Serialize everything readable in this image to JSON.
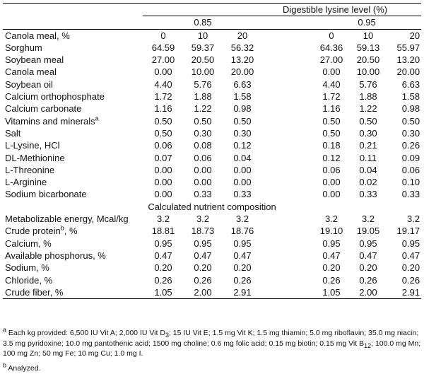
{
  "header": {
    "group_title": "Digestible lysine level (%)",
    "level1": "0.85",
    "level2": "0.95",
    "row_label": "Canola meal, %",
    "canola_levels": [
      "0",
      "10",
      "20",
      "0",
      "10",
      "20"
    ]
  },
  "ingredients": [
    {
      "name": "Sorghum",
      "values": [
        "64.59",
        "59.37",
        "56.32",
        "64.36",
        "59.13",
        "55.97"
      ]
    },
    {
      "name": "Soybean meal",
      "values": [
        "27.00",
        "20.50",
        "13.20",
        "27.00",
        "20.50",
        "13.20"
      ]
    },
    {
      "name": "Canola meal",
      "values": [
        "0.00",
        "10.00",
        "20.00",
        "0.00",
        "10.00",
        "20.00"
      ]
    },
    {
      "name": "Soybean oil",
      "values": [
        "4.40",
        "5.76",
        "6.63",
        "4.40",
        "5.76",
        "6.63"
      ]
    },
    {
      "name": "Calcium orthophosphate",
      "values": [
        "1.72",
        "1.88",
        "1.58",
        "1.72",
        "1.88",
        "1.58"
      ]
    },
    {
      "name": "Calcium carbonate",
      "values": [
        "1.16",
        "1.22",
        "0.98",
        "1.16",
        "1.22",
        "0.98"
      ]
    },
    {
      "name": "Vitamins and minerals",
      "sup": "a",
      "values": [
        "0.50",
        "0.50",
        "0.50",
        "0.50",
        "0.50",
        "0.50"
      ]
    },
    {
      "name": "Salt",
      "values": [
        "0.50",
        "0.30",
        "0.30",
        "0.50",
        "0.30",
        "0.30"
      ]
    },
    {
      "name": "L-Lysine, HCl",
      "values": [
        "0.06",
        "0.08",
        "0.12",
        "0.18",
        "0.21",
        "0.26"
      ]
    },
    {
      "name": "DL-Methionine",
      "values": [
        "0.07",
        "0.06",
        "0.04",
        "0.12",
        "0.11",
        "0.09"
      ]
    },
    {
      "name": "L-Threonine",
      "values": [
        "0.00",
        "0.00",
        "0.00",
        "0.06",
        "0.04",
        "0.06"
      ]
    },
    {
      "name": "L-Arginine",
      "values": [
        "0.00",
        "0.00",
        "0.00",
        "0.00",
        "0.02",
        "0.10"
      ]
    },
    {
      "name": "Sodium bicarbonate",
      "values": [
        "0.00",
        "0.33",
        "0.33",
        "0.00",
        "0.33",
        "0.33"
      ]
    }
  ],
  "composition_title": "Calculated nutrient composition",
  "composition": [
    {
      "name": "Metabolizable energy, Mcal/kg",
      "values": [
        "3.2",
        "3.2",
        "3.2",
        "3.2",
        "3.2",
        "3.2"
      ]
    },
    {
      "name": "Crude protein",
      "sup": "b",
      "suffix": ", %",
      "values": [
        "18.81",
        "18.73",
        "18.76",
        "19.10",
        "19.05",
        "19.17"
      ]
    },
    {
      "name": "Calcium, %",
      "values": [
        "0.95",
        "0.95",
        "0.95",
        "0.95",
        "0.95",
        "0.95"
      ]
    },
    {
      "name": "Available phosphorus, %",
      "values": [
        "0.47",
        "0.47",
        "0.47",
        "0.47",
        "0.47",
        "0.47"
      ]
    },
    {
      "name": "Sodium, %",
      "values": [
        "0.20",
        "0.20",
        "0.20",
        "0.20",
        "0.20",
        "0.20"
      ]
    },
    {
      "name": "Chloride, %",
      "values": [
        "0.26",
        "0.26",
        "0.26",
        "0.26",
        "0.26",
        "0.26"
      ]
    },
    {
      "name": "Crude fiber, %",
      "values": [
        "1.05",
        "2.00",
        "2.91",
        "1.05",
        "2.00",
        "2.91"
      ]
    }
  ],
  "footnotes": {
    "a_mark": "a",
    "a_part1": " Each kg provided: 6,500 IU  Vit A; 2,000 IU  Vit D",
    "a_sub1": "3",
    "a_part2": "; 15 IU  Vit E; 1.5 mg Vit K; 1.5 mg  thiamin; 5.0 mg riboflavin; 35.0 mg niacin; 3.5 mg pyridoxine; 10.0 mg pantothenic acid; 1500 mg choline; 0.6 mg folic acid; 0.15 mg biotin; 0.15 mg Vit B",
    "a_sub2": "12",
    "a_part3": "; 100.0 mg Mn; 100 mg Zn; 50 mg Fe; 10 mg Cu; 1.0 mg I.",
    "b_mark": "b",
    "b_text": " Analyzed."
  }
}
